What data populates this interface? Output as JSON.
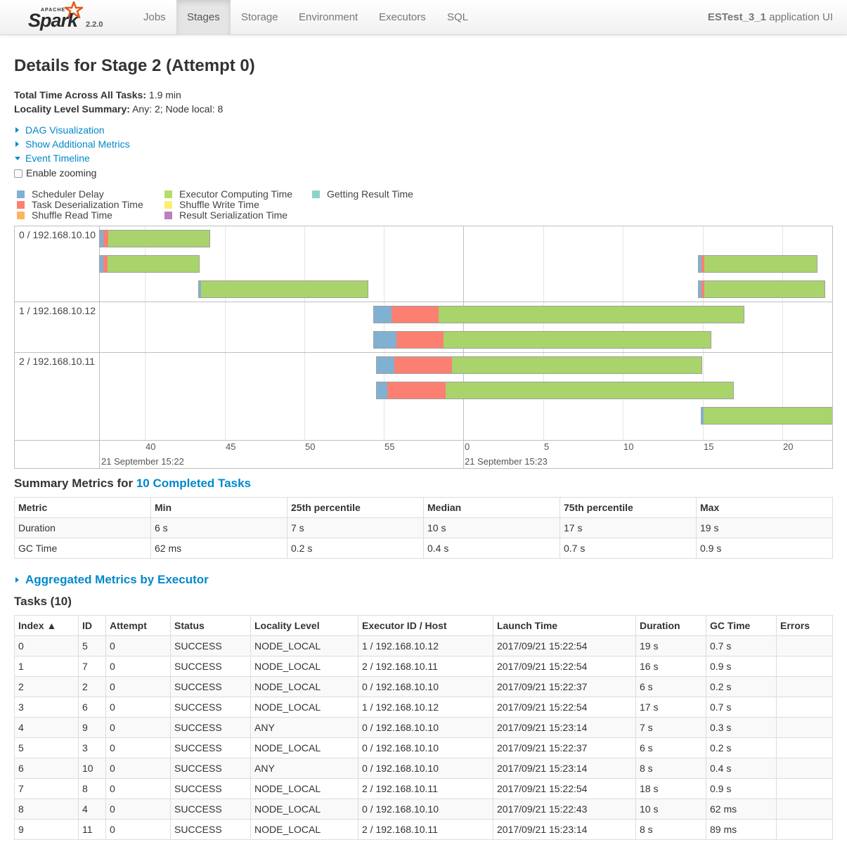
{
  "navbar": {
    "brand_apache": "APACHE",
    "brand_name": "Spark",
    "version": "2.2.0",
    "items": [
      {
        "label": "Jobs",
        "active": false
      },
      {
        "label": "Stages",
        "active": true
      },
      {
        "label": "Storage",
        "active": false
      },
      {
        "label": "Environment",
        "active": false
      },
      {
        "label": "Executors",
        "active": false
      },
      {
        "label": "SQL",
        "active": false
      }
    ],
    "app_name": "ESTest_3_1",
    "app_suffix": " application UI"
  },
  "page": {
    "title": "Details for Stage 2 (Attempt 0)",
    "total_time_label": "Total Time Across All Tasks:",
    "total_time_value": " 1.9 min",
    "locality_label": "Locality Level Summary:",
    "locality_value": " Any: 2; Node local: 8",
    "dag_link": "DAG Visualization",
    "metrics_link": "Show Additional Metrics",
    "timeline_link": "Event Timeline",
    "zoom_label": "Enable zooming"
  },
  "legend": [
    {
      "label": "Scheduler Delay",
      "color": "#80b1d3"
    },
    {
      "label": "Task Deserialization Time",
      "color": "#fb8072"
    },
    {
      "label": "Shuffle Read Time",
      "color": "#fdb462"
    },
    {
      "label": "Executor Computing Time",
      "color": "#b3de69"
    },
    {
      "label": "Shuffle Write Time",
      "color": "#ffed6f"
    },
    {
      "label": "Result Serialization Time",
      "color": "#bc80bd"
    },
    {
      "label": "Getting Result Time",
      "color": "#8dd3c7"
    }
  ],
  "timeline": {
    "executors": [
      "0 / 192.168.10.10",
      "1 / 192.168.10.12",
      "2 / 192.168.10.11"
    ],
    "minor_ticks": [
      "40",
      "45",
      "50",
      "55",
      "0",
      "5",
      "10",
      "15",
      "20"
    ],
    "major_labels": [
      "21 September 15:22",
      "21 September 15:23"
    ]
  },
  "summary": {
    "heading_prefix": "Summary Metrics for ",
    "heading_link": "10 Completed Tasks",
    "columns": [
      "Metric",
      "Min",
      "25th percentile",
      "Median",
      "75th percentile",
      "Max"
    ],
    "rows": [
      [
        "Duration",
        "6 s",
        "7 s",
        "10 s",
        "17 s",
        "19 s"
      ],
      [
        "GC Time",
        "62 ms",
        "0.2 s",
        "0.4 s",
        "0.7 s",
        "0.9 s"
      ]
    ]
  },
  "aggregated_link": "Aggregated Metrics by Executor",
  "tasks": {
    "heading": "Tasks (10)",
    "columns": [
      "Index ▲",
      "ID",
      "Attempt",
      "Status",
      "Locality Level",
      "Executor ID / Host",
      "Launch Time",
      "Duration",
      "GC Time",
      "Errors"
    ],
    "rows": [
      [
        "0",
        "5",
        "0",
        "SUCCESS",
        "NODE_LOCAL",
        "1 / 192.168.10.12",
        "2017/09/21 15:22:54",
        "19 s",
        "0.7 s",
        ""
      ],
      [
        "1",
        "7",
        "0",
        "SUCCESS",
        "NODE_LOCAL",
        "2 / 192.168.10.11",
        "2017/09/21 15:22:54",
        "16 s",
        "0.9 s",
        ""
      ],
      [
        "2",
        "2",
        "0",
        "SUCCESS",
        "NODE_LOCAL",
        "0 / 192.168.10.10",
        "2017/09/21 15:22:37",
        "6 s",
        "0.2 s",
        ""
      ],
      [
        "3",
        "6",
        "0",
        "SUCCESS",
        "NODE_LOCAL",
        "1 / 192.168.10.12",
        "2017/09/21 15:22:54",
        "17 s",
        "0.7 s",
        ""
      ],
      [
        "4",
        "9",
        "0",
        "SUCCESS",
        "ANY",
        "0 / 192.168.10.10",
        "2017/09/21 15:23:14",
        "7 s",
        "0.3 s",
        ""
      ],
      [
        "5",
        "3",
        "0",
        "SUCCESS",
        "NODE_LOCAL",
        "0 / 192.168.10.10",
        "2017/09/21 15:22:37",
        "6 s",
        "0.2 s",
        ""
      ],
      [
        "6",
        "10",
        "0",
        "SUCCESS",
        "ANY",
        "0 / 192.168.10.10",
        "2017/09/21 15:23:14",
        "8 s",
        "0.4 s",
        ""
      ],
      [
        "7",
        "8",
        "0",
        "SUCCESS",
        "NODE_LOCAL",
        "2 / 192.168.10.11",
        "2017/09/21 15:22:54",
        "18 s",
        "0.9 s",
        ""
      ],
      [
        "8",
        "4",
        "0",
        "SUCCESS",
        "NODE_LOCAL",
        "0 / 192.168.10.10",
        "2017/09/21 15:22:43",
        "10 s",
        "62 ms",
        ""
      ],
      [
        "9",
        "11",
        "0",
        "SUCCESS",
        "NODE_LOCAL",
        "2 / 192.168.10.11",
        "2017/09/21 15:23:14",
        "8 s",
        "89 ms",
        ""
      ]
    ]
  }
}
